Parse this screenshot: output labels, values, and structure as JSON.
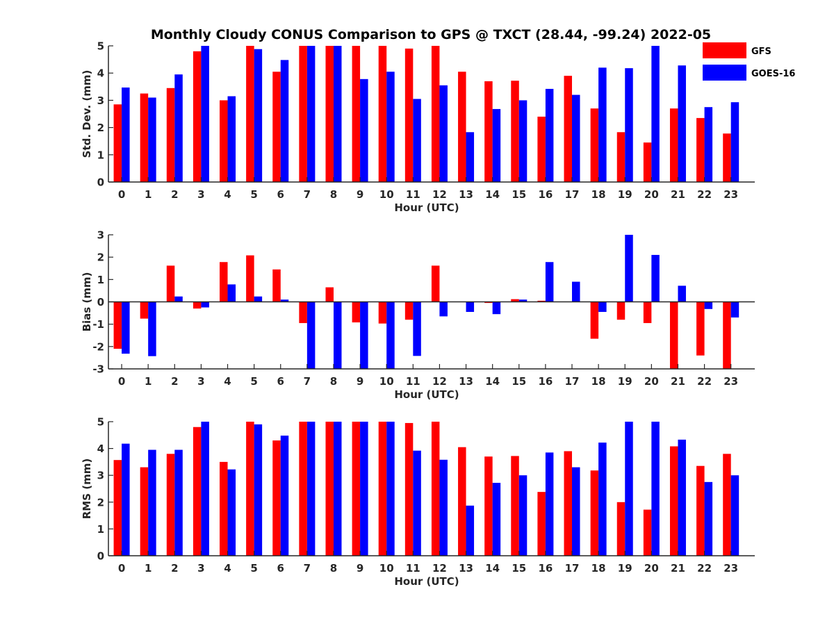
{
  "title": "Monthly Cloudy CONUS Comparison to GPS @ TXCT (28.44, -99.24) 2022-05",
  "colors": {
    "GFS": "#ff0000",
    "GOES-16": "#0000ff"
  },
  "legend": {
    "placement": "top-right",
    "entries": [
      "GFS",
      "GOES-16"
    ]
  },
  "chart_data": [
    {
      "type": "bar",
      "title": "Monthly Cloudy CONUS Comparison to GPS @ TXCT (28.44, -99.24) 2022-05",
      "xlabel": "Hour (UTC)",
      "ylabel": "Std. Dev. (mm)",
      "ylim": [
        0,
        5
      ],
      "yticks": [
        0,
        1,
        2,
        3,
        4,
        5
      ],
      "categories": [
        "0",
        "1",
        "2",
        "3",
        "4",
        "5",
        "6",
        "7",
        "8",
        "9",
        "10",
        "11",
        "12",
        "13",
        "14",
        "15",
        "16",
        "17",
        "18",
        "19",
        "20",
        "21",
        "22",
        "23"
      ],
      "series": [
        {
          "name": "GFS",
          "values": [
            2.85,
            3.25,
            3.45,
            4.8,
            3.0,
            5.0,
            4.05,
            5.0,
            5.0,
            5.0,
            5.0,
            4.9,
            5.0,
            4.05,
            3.7,
            3.72,
            2.4,
            3.9,
            2.7,
            1.83,
            1.45,
            2.7,
            2.35,
            1.78
          ]
        },
        {
          "name": "GOES-16",
          "values": [
            3.47,
            3.1,
            3.95,
            5.0,
            3.15,
            4.88,
            4.48,
            5.0,
            5.0,
            3.78,
            4.05,
            3.05,
            3.55,
            1.83,
            2.68,
            3.0,
            3.42,
            3.2,
            4.2,
            4.18,
            5.0,
            4.28,
            2.75,
            2.93
          ]
        }
      ],
      "grid": false
    },
    {
      "type": "bar",
      "xlabel": "Hour (UTC)",
      "ylabel": "Bias (mm)",
      "ylim": [
        -3,
        3
      ],
      "yticks": [
        -3,
        -2,
        -1,
        0,
        1,
        2,
        3
      ],
      "categories": [
        "0",
        "1",
        "2",
        "3",
        "4",
        "5",
        "6",
        "7",
        "8",
        "9",
        "10",
        "11",
        "12",
        "13",
        "14",
        "15",
        "16",
        "17",
        "18",
        "19",
        "20",
        "21",
        "22",
        "23"
      ],
      "series": [
        {
          "name": "GFS",
          "values": [
            -2.1,
            -0.75,
            1.62,
            -0.3,
            1.78,
            2.08,
            1.45,
            -0.95,
            0.65,
            -0.92,
            -0.97,
            -0.8,
            1.62,
            0.0,
            -0.05,
            0.12,
            0.05,
            0.0,
            -1.65,
            -0.8,
            -0.95,
            -3.0,
            -2.4,
            -3.0
          ]
        },
        {
          "name": "GOES-16",
          "values": [
            -2.32,
            -2.43,
            0.24,
            -0.25,
            0.78,
            0.24,
            0.1,
            -3.0,
            -3.0,
            -3.0,
            -3.0,
            -2.42,
            -0.65,
            -0.45,
            -0.55,
            0.1,
            1.78,
            0.9,
            -0.45,
            3.0,
            2.1,
            0.72,
            -0.32,
            -0.7
          ]
        }
      ],
      "grid": false
    },
    {
      "type": "bar",
      "xlabel": "Hour (UTC)",
      "ylabel": "RMS (mm)",
      "ylim": [
        0,
        5
      ],
      "yticks": [
        0,
        1,
        2,
        3,
        4,
        5
      ],
      "categories": [
        "0",
        "1",
        "2",
        "3",
        "4",
        "5",
        "6",
        "7",
        "8",
        "9",
        "10",
        "11",
        "12",
        "13",
        "14",
        "15",
        "16",
        "17",
        "18",
        "19",
        "20",
        "21",
        "22",
        "23"
      ],
      "series": [
        {
          "name": "GFS",
          "values": [
            3.57,
            3.3,
            3.8,
            4.8,
            3.5,
            5.0,
            4.3,
            5.0,
            5.0,
            5.0,
            5.0,
            4.95,
            5.0,
            4.05,
            3.7,
            3.72,
            2.38,
            3.9,
            3.18,
            2.0,
            1.72,
            4.08,
            3.35,
            3.8
          ]
        },
        {
          "name": "GOES-16",
          "values": [
            4.18,
            3.95,
            3.95,
            5.0,
            3.22,
            4.9,
            4.48,
            5.0,
            5.0,
            5.0,
            5.0,
            3.92,
            3.58,
            1.87,
            2.72,
            3.0,
            3.85,
            3.3,
            4.22,
            5.0,
            5.0,
            4.33,
            2.75,
            3.0
          ]
        }
      ],
      "grid": false
    }
  ]
}
